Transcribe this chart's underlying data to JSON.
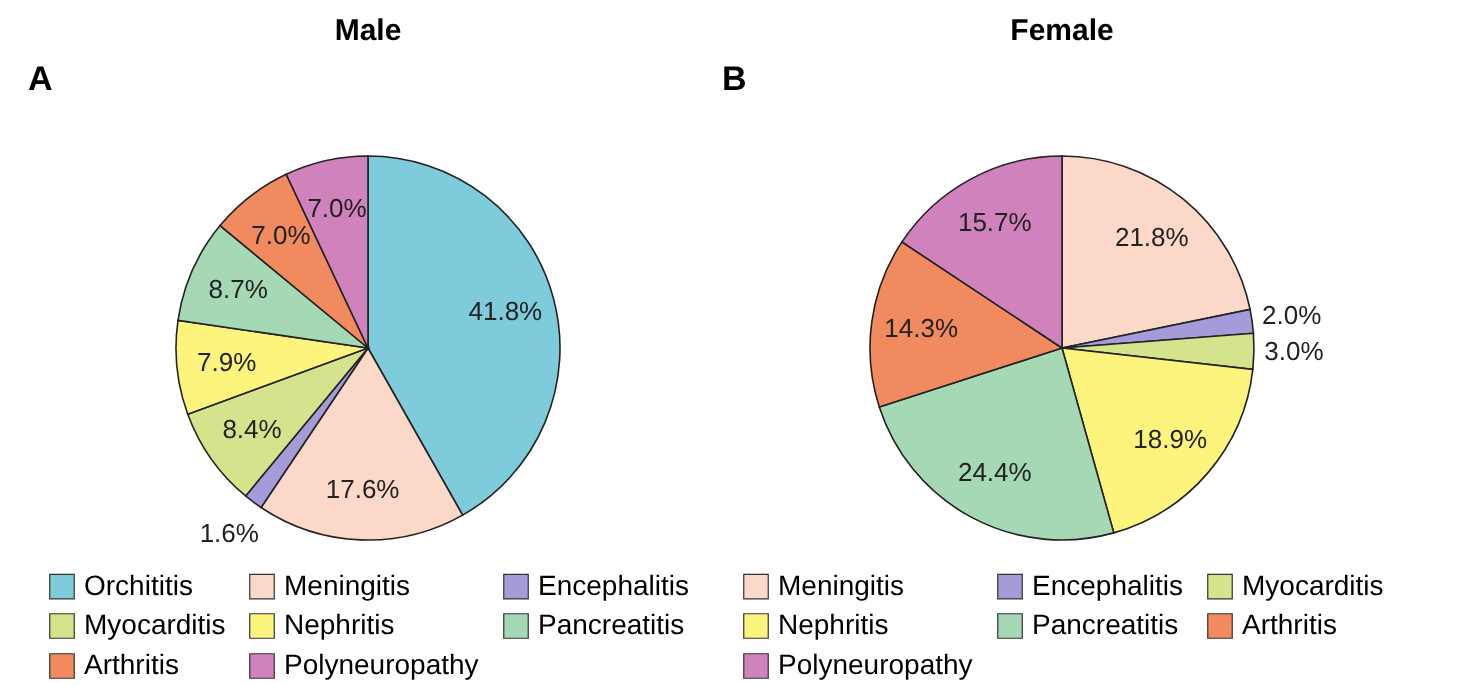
{
  "chart_data": [
    {
      "type": "pie",
      "title": "Male",
      "annotations": [
        "A"
      ],
      "legend": "bottom",
      "categories": [
        "Orchititis",
        "Meningitis",
        "Encephalitis",
        "Myocarditis",
        "Nephritis",
        "Pancreatitis",
        "Arthritis",
        "Polyneuropathy"
      ],
      "values": [
        41.8,
        17.6,
        1.6,
        8.4,
        7.9,
        8.7,
        7.0,
        7.0
      ],
      "value_labels": [
        "41.8%",
        "17.6%",
        "1.6%",
        "8.4%",
        "7.9%",
        "8.7%",
        "7.0%",
        "7.0%"
      ],
      "colors": [
        "#7ecbdb",
        "#fcd8c8",
        "#a39cd8",
        "#d5e38c",
        "#fcf47c",
        "#a5d8b4",
        "#f28a60",
        "#d082bc"
      ]
    },
    {
      "type": "pie",
      "title": "Female",
      "annotations": [
        "B"
      ],
      "legend": "bottom",
      "categories": [
        "Meningitis",
        "Encephalitis",
        "Myocarditis",
        "Nephritis",
        "Pancreatitis",
        "Arthritis",
        "Polyneuropathy"
      ],
      "values": [
        21.8,
        2.0,
        3.0,
        18.9,
        24.4,
        14.3,
        15.7
      ],
      "value_labels": [
        "21.8%",
        "2.0%",
        "3.0%",
        "18.9%",
        "24.4%",
        "14.3%",
        "15.7%"
      ],
      "colors": [
        "#fcd8c8",
        "#a39cd8",
        "#d5e38c",
        "#fcf47c",
        "#a5d8b4",
        "#f28a60",
        "#d082bc"
      ]
    }
  ]
}
